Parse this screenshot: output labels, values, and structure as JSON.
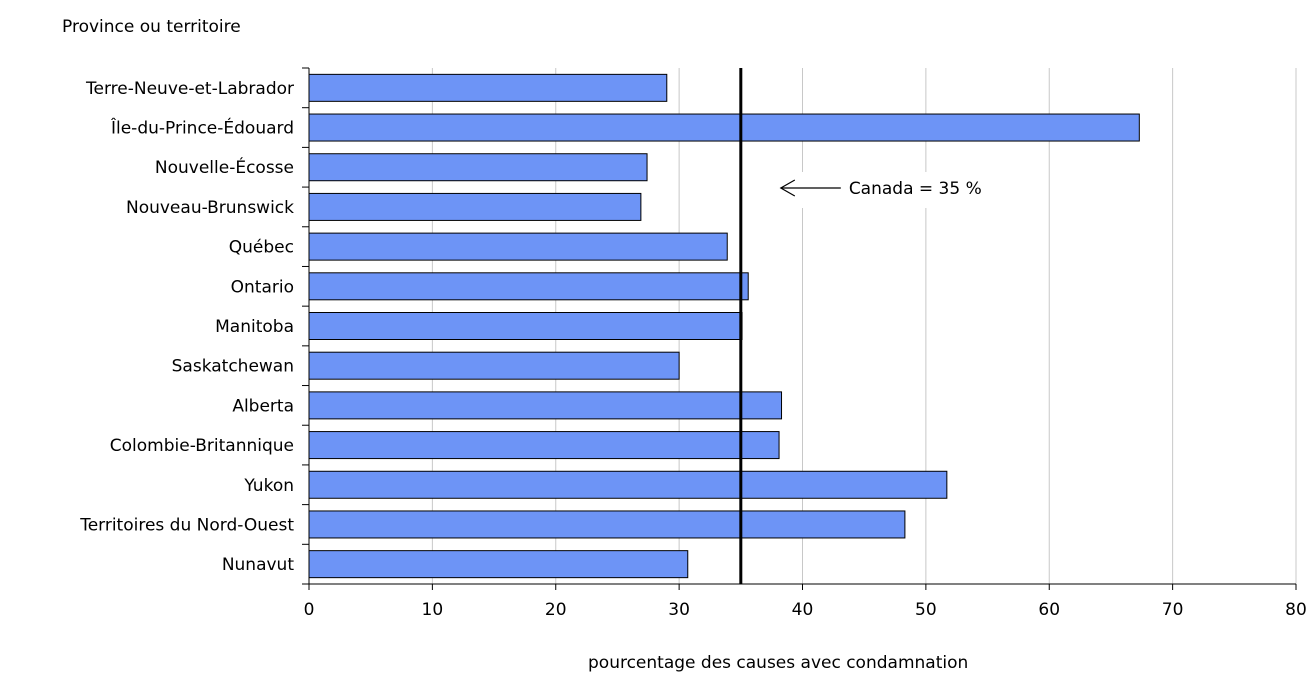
{
  "chart_data": {
    "type": "bar",
    "orientation": "horizontal",
    "ylabel": "Province ou territoire",
    "xlabel": "pourcentage des causes avec condamnation",
    "categories": [
      "Terre-Neuve-et-Labrador",
      "Île-du-Prince-Édouard",
      "Nouvelle-Écosse",
      "Nouveau-Brunswick",
      "Québec",
      "Ontario",
      "Manitoba",
      "Saskatchewan",
      "Alberta",
      "Colombie-Britannique",
      "Yukon",
      "Territoires du Nord-Ouest",
      "Nunavut"
    ],
    "values": [
      29,
      67.3,
      27.4,
      26.9,
      33.9,
      35.6,
      35.1,
      30,
      38.3,
      38.1,
      51.7,
      48.3,
      30.7
    ],
    "xlim": [
      0,
      80
    ],
    "xticks": [
      0,
      10,
      20,
      30,
      40,
      50,
      60,
      70,
      80
    ],
    "grid": "vertical",
    "bar_color": "#6d94f6",
    "reference_line": {
      "value": 35,
      "label": "Canada = 35 %"
    }
  }
}
